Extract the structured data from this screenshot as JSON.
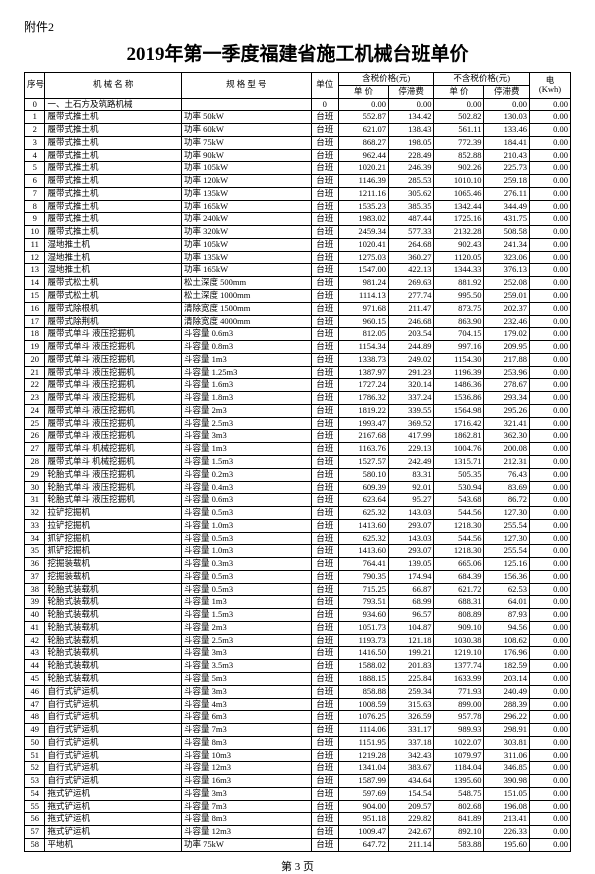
{
  "attachment": "附件2",
  "title": "2019年第一季度福建省施工机械台班单价",
  "footer": "第 3 页",
  "header": {
    "seq": "序号",
    "name": "机 械 名 称",
    "spec": "规 格 型 号",
    "unit": "单位",
    "tax_group": "含税价格(元)",
    "notax_group": "不含税价格(元)",
    "price": "单 价",
    "idle": "停滞费",
    "elec": "电\n(Kwh)"
  },
  "rows": [
    {
      "seq": "0",
      "name": "一、土石方及筑路机械",
      "spec": "",
      "unit": "0",
      "p1": "0.00",
      "f1": "0.00",
      "p2": "0.00",
      "f2": "0.00",
      "e": "0.00"
    },
    {
      "seq": "1",
      "name": "履带式推土机",
      "spec": "功率 50kW",
      "unit": "台班",
      "p1": "552.87",
      "f1": "134.42",
      "p2": "502.82",
      "f2": "130.03",
      "e": "0.00"
    },
    {
      "seq": "2",
      "name": "履带式推土机",
      "spec": "功率 60kW",
      "unit": "台班",
      "p1": "621.07",
      "f1": "138.43",
      "p2": "561.11",
      "f2": "133.46",
      "e": "0.00"
    },
    {
      "seq": "3",
      "name": "履带式推土机",
      "spec": "功率 75kW",
      "unit": "台班",
      "p1": "868.27",
      "f1": "198.05",
      "p2": "772.39",
      "f2": "184.41",
      "e": "0.00"
    },
    {
      "seq": "4",
      "name": "履带式推土机",
      "spec": "功率 90kW",
      "unit": "台班",
      "p1": "962.44",
      "f1": "228.49",
      "p2": "852.88",
      "f2": "210.43",
      "e": "0.00"
    },
    {
      "seq": "5",
      "name": "履带式推土机",
      "spec": "功率 105kW",
      "unit": "台班",
      "p1": "1020.21",
      "f1": "246.39",
      "p2": "902.26",
      "f2": "225.73",
      "e": "0.00"
    },
    {
      "seq": "6",
      "name": "履带式推土机",
      "spec": "功率 120kW",
      "unit": "台班",
      "p1": "1146.39",
      "f1": "285.53",
      "p2": "1010.10",
      "f2": "259.18",
      "e": "0.00"
    },
    {
      "seq": "7",
      "name": "履带式推土机",
      "spec": "功率 135kW",
      "unit": "台班",
      "p1": "1211.16",
      "f1": "305.62",
      "p2": "1065.46",
      "f2": "276.11",
      "e": "0.00"
    },
    {
      "seq": "8",
      "name": "履带式推土机",
      "spec": "功率 165kW",
      "unit": "台班",
      "p1": "1535.23",
      "f1": "385.35",
      "p2": "1342.44",
      "f2": "344.49",
      "e": "0.00"
    },
    {
      "seq": "9",
      "name": "履带式推土机",
      "spec": "功率 240kW",
      "unit": "台班",
      "p1": "1983.02",
      "f1": "487.44",
      "p2": "1725.16",
      "f2": "431.75",
      "e": "0.00"
    },
    {
      "seq": "10",
      "name": "履带式推土机",
      "spec": "功率 320kW",
      "unit": "台班",
      "p1": "2459.34",
      "f1": "577.33",
      "p2": "2132.28",
      "f2": "508.58",
      "e": "0.00"
    },
    {
      "seq": "11",
      "name": "湿地推土机",
      "spec": "功率 105kW",
      "unit": "台班",
      "p1": "1020.41",
      "f1": "264.68",
      "p2": "902.43",
      "f2": "241.34",
      "e": "0.00"
    },
    {
      "seq": "12",
      "name": "湿地推土机",
      "spec": "功率 135kW",
      "unit": "台班",
      "p1": "1275.03",
      "f1": "360.27",
      "p2": "1120.05",
      "f2": "323.06",
      "e": "0.00"
    },
    {
      "seq": "13",
      "name": "湿地推土机",
      "spec": "功率 165kW",
      "unit": "台班",
      "p1": "1547.00",
      "f1": "422.13",
      "p2": "1344.33",
      "f2": "376.13",
      "e": "0.00"
    },
    {
      "seq": "14",
      "name": "履带式松土机",
      "spec": "松土深度 500mm",
      "unit": "台班",
      "p1": "981.24",
      "f1": "269.63",
      "p2": "881.92",
      "f2": "252.08",
      "e": "0.00"
    },
    {
      "seq": "15",
      "name": "履带式松土机",
      "spec": "松土深度 1000mm",
      "unit": "台班",
      "p1": "1114.13",
      "f1": "277.74",
      "p2": "995.50",
      "f2": "259.01",
      "e": "0.00"
    },
    {
      "seq": "16",
      "name": "履带式除根机",
      "spec": "清除宽度 1500mm",
      "unit": "台班",
      "p1": "971.68",
      "f1": "211.47",
      "p2": "873.75",
      "f2": "202.37",
      "e": "0.00"
    },
    {
      "seq": "17",
      "name": "履带式除荆机",
      "spec": "清除宽度 4000mm",
      "unit": "台班",
      "p1": "960.15",
      "f1": "246.68",
      "p2": "863.90",
      "f2": "232.46",
      "e": "0.00"
    },
    {
      "seq": "18",
      "name": "履带式单斗 液压挖掘机",
      "spec": "斗容量 0.6m3",
      "unit": "台班",
      "p1": "812.05",
      "f1": "203.54",
      "p2": "704.15",
      "f2": "179.02",
      "e": "0.00"
    },
    {
      "seq": "19",
      "name": "履带式单斗 液压挖掘机",
      "spec": "斗容量 0.8m3",
      "unit": "台班",
      "p1": "1154.34",
      "f1": "244.89",
      "p2": "997.16",
      "f2": "209.95",
      "e": "0.00"
    },
    {
      "seq": "20",
      "name": "履带式单斗 液压挖掘机",
      "spec": "斗容量 1m3",
      "unit": "台班",
      "p1": "1338.73",
      "f1": "249.02",
      "p2": "1154.30",
      "f2": "217.88",
      "e": "0.00"
    },
    {
      "seq": "21",
      "name": "履带式单斗 液压挖掘机",
      "spec": "斗容量 1.25m3",
      "unit": "台班",
      "p1": "1387.97",
      "f1": "291.23",
      "p2": "1196.39",
      "f2": "253.96",
      "e": "0.00"
    },
    {
      "seq": "22",
      "name": "履带式单斗 液压挖掘机",
      "spec": "斗容量 1.6m3",
      "unit": "台班",
      "p1": "1727.24",
      "f1": "320.14",
      "p2": "1486.36",
      "f2": "278.67",
      "e": "0.00"
    },
    {
      "seq": "23",
      "name": "履带式单斗 液压挖掘机",
      "spec": "斗容量 1.8m3",
      "unit": "台班",
      "p1": "1786.32",
      "f1": "337.24",
      "p2": "1536.86",
      "f2": "293.34",
      "e": "0.00"
    },
    {
      "seq": "24",
      "name": "履带式单斗 液压挖掘机",
      "spec": "斗容量 2m3",
      "unit": "台班",
      "p1": "1819.22",
      "f1": "339.55",
      "p2": "1564.98",
      "f2": "295.26",
      "e": "0.00"
    },
    {
      "seq": "25",
      "name": "履带式单斗 液压挖掘机",
      "spec": "斗容量 2.5m3",
      "unit": "台班",
      "p1": "1993.47",
      "f1": "369.52",
      "p2": "1716.42",
      "f2": "321.41",
      "e": "0.00"
    },
    {
      "seq": "26",
      "name": "履带式单斗 液压挖掘机",
      "spec": "斗容量 3m3",
      "unit": "台班",
      "p1": "2167.68",
      "f1": "417.99",
      "p2": "1862.81",
      "f2": "362.30",
      "e": "0.00"
    },
    {
      "seq": "27",
      "name": "履带式单斗 机械挖掘机",
      "spec": "斗容量 1m3",
      "unit": "台班",
      "p1": "1163.76",
      "f1": "229.13",
      "p2": "1004.76",
      "f2": "200.08",
      "e": "0.00"
    },
    {
      "seq": "28",
      "name": "履带式单斗 机械挖掘机",
      "spec": "斗容量 1.5m3",
      "unit": "台班",
      "p1": "1527.57",
      "f1": "242.49",
      "p2": "1315.71",
      "f2": "212.31",
      "e": "0.00"
    },
    {
      "seq": "29",
      "name": "轮胎式单斗 液压挖掘机",
      "spec": "斗容量 0.2m3",
      "unit": "台班",
      "p1": "580.10",
      "f1": "83.31",
      "p2": "505.35",
      "f2": "76.43",
      "e": "0.00"
    },
    {
      "seq": "30",
      "name": "轮胎式单斗 液压挖掘机",
      "spec": "斗容量 0.4m3",
      "unit": "台班",
      "p1": "609.39",
      "f1": "92.01",
      "p2": "530.94",
      "f2": "83.69",
      "e": "0.00"
    },
    {
      "seq": "31",
      "name": "轮胎式单斗 液压挖掘机",
      "spec": "斗容量 0.6m3",
      "unit": "台班",
      "p1": "623.64",
      "f1": "95.27",
      "p2": "543.68",
      "f2": "86.72",
      "e": "0.00"
    },
    {
      "seq": "32",
      "name": "拉铲挖掘机",
      "spec": "斗容量 0.5m3",
      "unit": "台班",
      "p1": "625.32",
      "f1": "143.03",
      "p2": "544.56",
      "f2": "127.30",
      "e": "0.00"
    },
    {
      "seq": "33",
      "name": "拉铲挖掘机",
      "spec": "斗容量 1.0m3",
      "unit": "台班",
      "p1": "1413.60",
      "f1": "293.07",
      "p2": "1218.30",
      "f2": "255.54",
      "e": "0.00"
    },
    {
      "seq": "34",
      "name": "抓铲挖掘机",
      "spec": "斗容量 0.5m3",
      "unit": "台班",
      "p1": "625.32",
      "f1": "143.03",
      "p2": "544.56",
      "f2": "127.30",
      "e": "0.00"
    },
    {
      "seq": "35",
      "name": "抓铲挖掘机",
      "spec": "斗容量 1.0m3",
      "unit": "台班",
      "p1": "1413.60",
      "f1": "293.07",
      "p2": "1218.30",
      "f2": "255.54",
      "e": "0.00"
    },
    {
      "seq": "36",
      "name": "挖掘装载机",
      "spec": "斗容量 0.3m3",
      "unit": "台班",
      "p1": "764.41",
      "f1": "139.05",
      "p2": "665.06",
      "f2": "125.16",
      "e": "0.00"
    },
    {
      "seq": "37",
      "name": "挖掘装载机",
      "spec": "斗容量 0.5m3",
      "unit": "台班",
      "p1": "790.35",
      "f1": "174.94",
      "p2": "684.39",
      "f2": "156.36",
      "e": "0.00"
    },
    {
      "seq": "38",
      "name": "轮胎式装载机",
      "spec": "斗容量 0.5m3",
      "unit": "台班",
      "p1": "715.25",
      "f1": "66.87",
      "p2": "621.72",
      "f2": "62.53",
      "e": "0.00"
    },
    {
      "seq": "39",
      "name": "轮胎式装载机",
      "spec": "斗容量 1m3",
      "unit": "台班",
      "p1": "793.51",
      "f1": "68.99",
      "p2": "688.31",
      "f2": "64.01",
      "e": "0.00"
    },
    {
      "seq": "40",
      "name": "轮胎式装载机",
      "spec": "斗容量 1.5m3",
      "unit": "台班",
      "p1": "934.60",
      "f1": "96.57",
      "p2": "808.89",
      "f2": "87.93",
      "e": "0.00"
    },
    {
      "seq": "41",
      "name": "轮胎式装载机",
      "spec": "斗容量 2m3",
      "unit": "台班",
      "p1": "1051.73",
      "f1": "104.87",
      "p2": "909.10",
      "f2": "94.56",
      "e": "0.00"
    },
    {
      "seq": "42",
      "name": "轮胎式装载机",
      "spec": "斗容量 2.5m3",
      "unit": "台班",
      "p1": "1193.73",
      "f1": "121.18",
      "p2": "1030.38",
      "f2": "108.62",
      "e": "0.00"
    },
    {
      "seq": "43",
      "name": "轮胎式装载机",
      "spec": "斗容量 3m3",
      "unit": "台班",
      "p1": "1416.50",
      "f1": "199.21",
      "p2": "1219.10",
      "f2": "176.96",
      "e": "0.00"
    },
    {
      "seq": "44",
      "name": "轮胎式装载机",
      "spec": "斗容量 3.5m3",
      "unit": "台班",
      "p1": "1588.02",
      "f1": "201.83",
      "p2": "1377.74",
      "f2": "182.59",
      "e": "0.00"
    },
    {
      "seq": "45",
      "name": "轮胎式装载机",
      "spec": "斗容量 5m3",
      "unit": "台班",
      "p1": "1888.15",
      "f1": "225.84",
      "p2": "1633.99",
      "f2": "203.14",
      "e": "0.00"
    },
    {
      "seq": "46",
      "name": "自行式铲运机",
      "spec": "斗容量 3m3",
      "unit": "台班",
      "p1": "858.88",
      "f1": "259.34",
      "p2": "771.93",
      "f2": "240.49",
      "e": "0.00"
    },
    {
      "seq": "47",
      "name": "自行式铲运机",
      "spec": "斗容量 4m3",
      "unit": "台班",
      "p1": "1008.59",
      "f1": "315.63",
      "p2": "899.00",
      "f2": "288.39",
      "e": "0.00"
    },
    {
      "seq": "48",
      "name": "自行式铲运机",
      "spec": "斗容量 6m3",
      "unit": "台班",
      "p1": "1076.25",
      "f1": "326.59",
      "p2": "957.78",
      "f2": "296.22",
      "e": "0.00"
    },
    {
      "seq": "49",
      "name": "自行式铲运机",
      "spec": "斗容量 7m3",
      "unit": "台班",
      "p1": "1114.06",
      "f1": "331.17",
      "p2": "989.93",
      "f2": "298.91",
      "e": "0.00"
    },
    {
      "seq": "50",
      "name": "自行式铲运机",
      "spec": "斗容量 8m3",
      "unit": "台班",
      "p1": "1151.95",
      "f1": "337.18",
      "p2": "1022.07",
      "f2": "303.81",
      "e": "0.00"
    },
    {
      "seq": "51",
      "name": "自行式铲运机",
      "spec": "斗容量 10m3",
      "unit": "台班",
      "p1": "1219.28",
      "f1": "342.43",
      "p2": "1079.97",
      "f2": "311.06",
      "e": "0.00"
    },
    {
      "seq": "52",
      "name": "自行式铲运机",
      "spec": "斗容量 12m3",
      "unit": "台班",
      "p1": "1341.04",
      "f1": "383.67",
      "p2": "1184.04",
      "f2": "346.85",
      "e": "0.00"
    },
    {
      "seq": "53",
      "name": "自行式铲运机",
      "spec": "斗容量 16m3",
      "unit": "台班",
      "p1": "1587.99",
      "f1": "434.64",
      "p2": "1395.60",
      "f2": "390.98",
      "e": "0.00"
    },
    {
      "seq": "54",
      "name": "拖式铲运机",
      "spec": "斗容量 3m3",
      "unit": "台班",
      "p1": "597.69",
      "f1": "154.54",
      "p2": "548.75",
      "f2": "151.05",
      "e": "0.00"
    },
    {
      "seq": "55",
      "name": "拖式铲运机",
      "spec": "斗容量 7m3",
      "unit": "台班",
      "p1": "904.00",
      "f1": "209.57",
      "p2": "802.68",
      "f2": "196.08",
      "e": "0.00"
    },
    {
      "seq": "56",
      "name": "拖式铲运机",
      "spec": "斗容量 8m3",
      "unit": "台班",
      "p1": "951.18",
      "f1": "229.82",
      "p2": "841.89",
      "f2": "213.41",
      "e": "0.00"
    },
    {
      "seq": "57",
      "name": "拖式铲运机",
      "spec": "斗容量 12m3",
      "unit": "台班",
      "p1": "1009.47",
      "f1": "242.67",
      "p2": "892.10",
      "f2": "226.33",
      "e": "0.00"
    },
    {
      "seq": "58",
      "name": "平地机",
      "spec": "功率 75kW",
      "unit": "台班",
      "p1": "647.72",
      "f1": "211.14",
      "p2": "583.88",
      "f2": "195.60",
      "e": "0.00"
    }
  ]
}
